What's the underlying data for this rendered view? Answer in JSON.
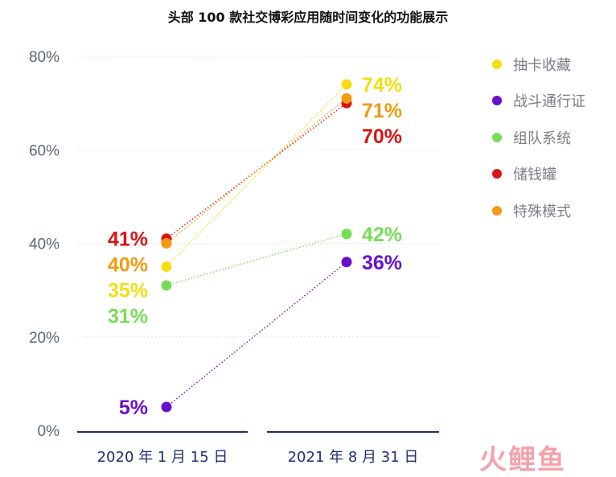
{
  "chart_data": {
    "type": "scatter",
    "title": "头部 100 款社交博彩应用随时间变化的功能展示",
    "categories": [
      "2020 年 1 月 15 日",
      "2021 年 8 月 31 日"
    ],
    "y_ticks": [
      "0%",
      "20%",
      "40%",
      "60%",
      "80%"
    ],
    "ylim": [
      0,
      80
    ],
    "grid": true,
    "legend_position": "right",
    "series": [
      {
        "name": "抽卡收藏",
        "color": "#f5dd14",
        "values": [
          35,
          74
        ],
        "labels": [
          "35%",
          "74%"
        ]
      },
      {
        "name": "战斗通行证",
        "color": "#6a0fcf",
        "values": [
          5,
          36
        ],
        "labels": [
          "5%",
          "36%"
        ]
      },
      {
        "name": "组队系统",
        "color": "#77dd55",
        "values": [
          31,
          42
        ],
        "labels": [
          "31%",
          "42%"
        ]
      },
      {
        "name": "储钱罐",
        "color": "#d91414",
        "values": [
          41,
          70
        ],
        "labels": [
          "41%",
          "70%"
        ]
      },
      {
        "name": "特殊模式",
        "color": "#f29a12",
        "values": [
          40,
          71
        ],
        "labels": [
          "40%",
          "71%"
        ]
      }
    ]
  },
  "watermark": "火鲤鱼"
}
